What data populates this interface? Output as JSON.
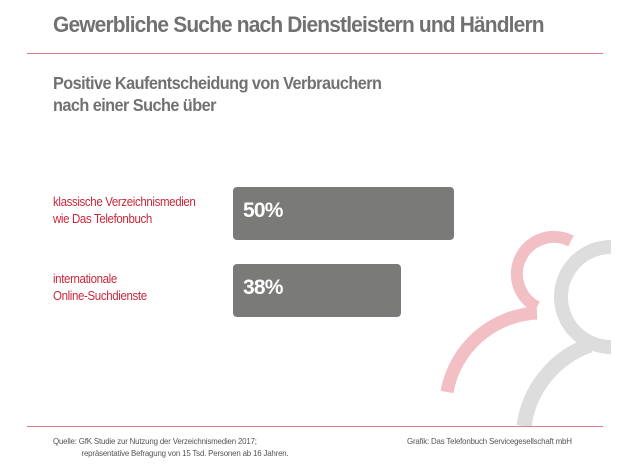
{
  "title": "Gewerbliche Suche nach Dienstleistern und Händlern",
  "subtitle": {
    "line1": "Positive Kaufentscheidung von Verbrauchern",
    "line2": "nach einer Suche über"
  },
  "colors": {
    "accent": "#c8283c",
    "bar": "#7a7a78",
    "title": "#717171",
    "rule": "#e07c86",
    "icon_pink": "#f2bfc5",
    "icon_grey": "#dddddd"
  },
  "chart_data": {
    "type": "bar",
    "orientation": "horizontal",
    "title": "Positive Kaufentscheidung von Verbrauchern nach einer Suche über",
    "categories": [
      "klassische Verzeichnismedien wie Das Telefonbuch",
      "internationale Online-Suchdienste"
    ],
    "category_lines": [
      [
        "klassische Verzeichnismedien",
        "wie Das Telefonbuch"
      ],
      [
        "internationale",
        "Online-Suchdienste"
      ]
    ],
    "values": [
      50,
      38
    ],
    "value_labels": [
      "50%",
      "38%"
    ],
    "unit": "%",
    "xlabel": "",
    "ylabel": "",
    "xlim": [
      0,
      50
    ],
    "grid": false,
    "legend": "none"
  },
  "footer": {
    "source_label": "Quelle:",
    "source_line1": "GfK Studie zur Nutzung der Verzeichnismedien 2017;",
    "source_line2": "repräsentative Befragung von 15 Tsd. Personen ab 16 Jahren.",
    "credit": "Grafik: Das Telefonbuch Servicegesellschaft mbH"
  }
}
